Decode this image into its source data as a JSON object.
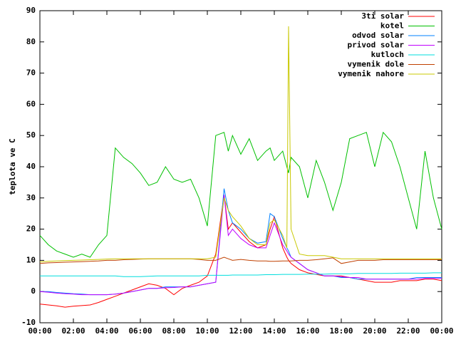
{
  "chart_data": {
    "type": "line",
    "ylabel": "teplota ve C",
    "x": [
      0,
      0.5,
      1,
      1.5,
      2,
      2.5,
      3,
      3.5,
      4,
      4.5,
      5,
      5.5,
      6,
      6.5,
      7,
      7.5,
      8,
      8.5,
      9,
      9.5,
      10,
      10.5,
      11,
      11.25,
      11.5,
      12,
      12.5,
      13,
      13.5,
      13.75,
      14,
      14.5,
      14.75,
      14.85,
      15,
      15.5,
      16,
      16.5,
      17,
      17.5,
      18,
      18.5,
      19,
      19.5,
      20,
      20.5,
      21,
      21.5,
      22,
      22.5,
      23,
      23.5,
      24
    ],
    "xlim": [
      0,
      24
    ],
    "xticks": [
      {
        "value": 0,
        "label": "00:00"
      },
      {
        "value": 2,
        "label": "02:00"
      },
      {
        "value": 4,
        "label": "04:00"
      },
      {
        "value": 6,
        "label": "06:00"
      },
      {
        "value": 8,
        "label": "08:00"
      },
      {
        "value": 10,
        "label": "10:00"
      },
      {
        "value": 12,
        "label": "12:00"
      },
      {
        "value": 14,
        "label": "14:00"
      },
      {
        "value": 16,
        "label": "16:00"
      },
      {
        "value": 18,
        "label": "18:00"
      },
      {
        "value": 20,
        "label": "20:00"
      },
      {
        "value": 22,
        "label": "22:00"
      },
      {
        "value": 24,
        "label": "00:00"
      }
    ],
    "ylim": [
      -10,
      90
    ],
    "yticks": [
      -10,
      0,
      10,
      20,
      30,
      40,
      50,
      60,
      70,
      80,
      90
    ],
    "grid": false,
    "legend": "top-right",
    "series": [
      {
        "name": "3ti solar",
        "color": "#ff0000",
        "values": [
          -4,
          -4.3,
          -4.6,
          -5,
          -4.7,
          -4.5,
          -4.3,
          -3.5,
          -2.5,
          -1.5,
          -0.5,
          0.5,
          1.5,
          2.5,
          2,
          1,
          -1,
          1,
          2,
          3,
          5,
          12,
          31,
          20,
          22,
          19,
          16,
          14,
          15,
          20,
          24,
          14,
          11,
          10,
          9,
          7,
          6,
          5.5,
          5,
          5,
          5,
          4.5,
          4,
          3.5,
          3,
          3,
          3,
          3.5,
          3.5,
          3.5,
          4,
          4,
          3.5
        ]
      },
      {
        "name": "kotel",
        "color": "#00c000",
        "values": [
          18,
          15,
          13,
          12,
          11,
          12,
          11,
          15,
          18,
          46,
          43,
          41,
          38,
          34,
          35,
          40,
          36,
          35,
          36,
          30,
          21,
          50,
          51,
          45,
          50,
          44,
          49,
          42,
          45,
          46,
          42,
          45,
          40,
          38,
          43,
          40,
          30,
          42,
          35,
          26,
          35,
          49,
          50,
          51,
          40,
          51,
          48,
          40,
          30,
          20,
          45,
          30,
          20
        ]
      },
      {
        "name": "odvod solar",
        "color": "#0080ff",
        "values": [
          0,
          0,
          -0.3,
          -0.5,
          -0.7,
          -0.8,
          -1,
          -1,
          -1,
          -0.8,
          -0.5,
          0,
          0.5,
          1,
          1,
          1.5,
          1.5,
          1.5,
          1.5,
          2,
          2.5,
          3,
          33,
          26,
          22,
          20,
          17,
          15.5,
          16,
          25,
          24,
          17,
          14,
          13,
          11,
          9,
          7,
          6,
          5,
          5,
          4.5,
          4.5,
          4,
          4,
          4,
          4,
          4,
          4,
          4,
          4.5,
          4.5,
          4.5,
          4.5
        ]
      },
      {
        "name": "privod solar",
        "color": "#c000ff",
        "values": [
          0,
          -0.2,
          -0.5,
          -0.7,
          -0.8,
          -1,
          -1,
          -1,
          -1,
          -0.8,
          -0.5,
          0,
          0.5,
          1,
          1,
          1.2,
          1.3,
          1.5,
          1.5,
          2,
          2.5,
          3,
          31,
          18,
          20,
          17,
          15,
          14,
          14,
          18,
          22,
          15,
          13,
          12,
          11,
          9,
          7,
          6,
          5,
          5,
          4.8,
          4.5,
          4.5,
          4,
          4,
          4,
          4,
          4,
          4,
          4,
          4.2,
          4.2,
          4.2
        ]
      },
      {
        "name": "kutloch",
        "color": "#00dddd",
        "values": [
          5,
          5,
          5,
          5,
          5,
          5,
          5,
          5,
          5,
          5,
          4.8,
          4.8,
          4.8,
          4.9,
          5,
          5,
          5,
          5,
          5,
          5,
          5.2,
          5.2,
          5.2,
          5.2,
          5.3,
          5.3,
          5.3,
          5.3,
          5.4,
          5.4,
          5.4,
          5.5,
          5.5,
          5.5,
          5.5,
          5.5,
          5.6,
          5.6,
          5.6,
          5.7,
          5.7,
          5.7,
          5.8,
          5.8,
          5.8,
          5.8,
          5.8,
          5.9,
          5.9,
          5.9,
          5.9,
          6,
          6
        ]
      },
      {
        "name": "vymenik dole",
        "color": "#c04000",
        "values": [
          9,
          9.2,
          9.3,
          9.4,
          9.5,
          9.6,
          9.7,
          9.8,
          10,
          10,
          10.2,
          10.3,
          10.4,
          10.5,
          10.5,
          10.5,
          10.5,
          10.5,
          10.5,
          10.3,
          10,
          10,
          11,
          10.5,
          10,
          10.3,
          10,
          9.8,
          9.8,
          9.7,
          9.7,
          9.8,
          9.8,
          9.8,
          9.8,
          10,
          10,
          10.2,
          10.5,
          10.8,
          9,
          9.5,
          10,
          10,
          10,
          10.2,
          10.2,
          10.2,
          10.2,
          10.2,
          10.2,
          10.2,
          10.2
        ]
      },
      {
        "name": "vymenik nahore",
        "color": "#c8c800",
        "values": [
          9.5,
          9.7,
          9.8,
          9.9,
          10,
          10.1,
          10.2,
          10.3,
          10.4,
          10.5,
          10.5,
          10.5,
          10.5,
          10.5,
          10.5,
          10.5,
          10.5,
          10.5,
          10.5,
          10.5,
          10.5,
          11,
          30,
          26,
          24,
          21,
          17,
          15,
          15,
          22,
          23,
          18,
          14,
          85,
          20,
          12,
          11.5,
          11.5,
          11.5,
          11,
          10.5,
          10.5,
          10.5,
          10.5,
          10.5,
          10.5,
          10.5,
          10.5,
          10.5,
          10.5,
          10.5,
          10.5,
          10.5
        ]
      }
    ]
  }
}
